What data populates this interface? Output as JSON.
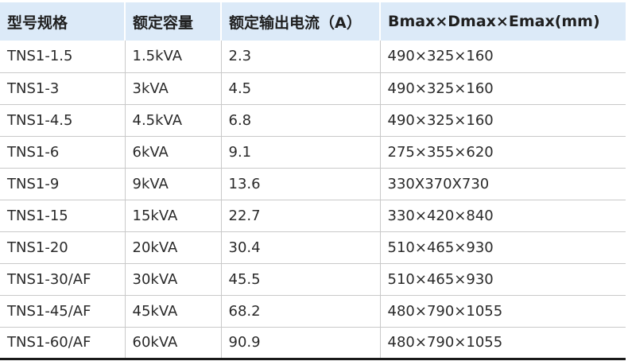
{
  "table": {
    "headers": [
      "型号规格",
      "额定容量",
      "额定输出电流（A）",
      "Bmax×Dmax×Emax(mm)"
    ],
    "rows": [
      [
        "TNS1-1.5",
        "1.5kVA",
        "2.3",
        "490×325×160"
      ],
      [
        "TNS1-3",
        "3kVA",
        "4.5",
        "490×325×160"
      ],
      [
        "TNS1-4.5",
        "4.5kVA",
        "6.8",
        "490×325×160"
      ],
      [
        "TNS1-6",
        "6kVA",
        "9.1",
        "275×355×620"
      ],
      [
        "TNS1-9",
        "9kVA",
        "13.6",
        "330X370X730"
      ],
      [
        "TNS1-15",
        "15kVA",
        "22.7",
        "330×420×840"
      ],
      [
        "TNS1-20",
        "20kVA",
        "30.4",
        "510×465×930"
      ],
      [
        "TNS1-30/AF",
        "30kVA",
        "45.5",
        "510×465×930"
      ],
      [
        "TNS1-45/AF",
        "45kVA",
        "68.2",
        "480×790×1055"
      ],
      [
        "TNS1-60/AF",
        "60kVA",
        "90.9",
        "480×790×1055"
      ]
    ]
  },
  "colors": {
    "header_background": "#dceaf8",
    "grid_line": "#c9c9c9",
    "bottom_rule": "#1a1a1a"
  }
}
